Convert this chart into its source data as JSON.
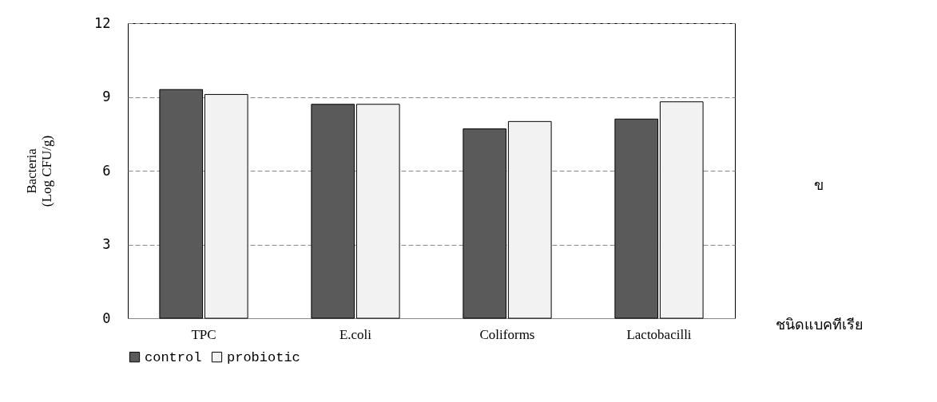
{
  "chart_data": {
    "type": "bar",
    "ylabel": "Bacteria\n(Log CFU/g)",
    "xlabel": "ชนิดแบคทีเรีย",
    "annotations": [
      "ข"
    ],
    "categories": [
      "TPC",
      "E.coli",
      "Coliforms",
      "Lactobacilli"
    ],
    "series": [
      {
        "name": "control",
        "color": "#5a5a5a",
        "values": [
          9.3,
          8.7,
          7.7,
          8.1
        ]
      },
      {
        "name": "probiotic",
        "color": "#f2f2f2",
        "values": [
          9.1,
          8.7,
          8.0,
          8.8
        ]
      }
    ],
    "ylim": [
      0,
      12
    ],
    "yticks": [
      0,
      3,
      6,
      9,
      12
    ],
    "grid": "y",
    "legend": "bottom"
  }
}
